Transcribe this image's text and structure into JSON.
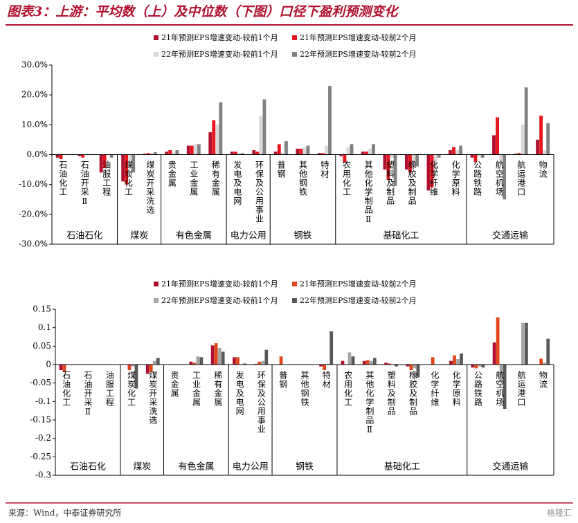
{
  "header": {
    "title": "图表3：上游：平均数（上）及中位数（下图）口径下盈利预测变化"
  },
  "chart_data": [
    {
      "type": "bar",
      "groups": [
        {
          "name": "石油石化",
          "categories": [
            "石油化工",
            "石油开采Ⅱ",
            "油服工程"
          ]
        },
        {
          "name": "煤炭",
          "categories": [
            "煤炭化工",
            "煤炭开采洗选"
          ]
        },
        {
          "name": "有色金属",
          "categories": [
            "贵金属",
            "工业金属",
            "稀有金属"
          ]
        },
        {
          "name": "电力公用",
          "categories": [
            "发电及电网",
            "环保及公用事业"
          ]
        },
        {
          "name": "钢铁",
          "categories": [
            "普钢",
            "其他钢铁",
            "特材"
          ]
        },
        {
          "name": "基础化工",
          "categories": [
            "农用化工",
            "其他化学制品Ⅱ",
            "塑料及制品",
            "橡胶及制品",
            "化学纤维",
            "化学原料"
          ]
        },
        {
          "name": "交通运输",
          "categories": [
            "公路铁路",
            "航空机场",
            "航运港口",
            "物流"
          ]
        }
      ],
      "series": [
        {
          "name": "21年预测EPS增速变动-较前1个月",
          "color": "#b0102e",
          "values": [
            -1,
            -0.5,
            -6,
            -9,
            0.3,
            1,
            3,
            7.5,
            1,
            1.5,
            1,
            2,
            0.5,
            -0.5,
            1,
            -5,
            -5,
            -12,
            1.5,
            -1,
            6.5,
            0.3,
            5
          ]
        },
        {
          "name": "21年预测EPS增速变动-较前2个月",
          "color": "#e8141c",
          "values": [
            -1.5,
            -1,
            -4.5,
            -10,
            0.5,
            1.5,
            3,
            11.5,
            1,
            1,
            3.5,
            2,
            0.5,
            -2.5,
            1,
            -8.5,
            -6,
            -11,
            2.5,
            -2.5,
            12.5,
            0.5,
            13
          ]
        },
        {
          "name": "22年预测EPS增速变动-较前1个月",
          "color": "#d9d9d9",
          "values": [
            0,
            0,
            0,
            -4,
            0.5,
            1,
            3.5,
            10,
            0.5,
            13,
            0.5,
            2.5,
            3,
            2.5,
            2,
            -1,
            -2.5,
            -5,
            1.5,
            -0.5,
            -3,
            10,
            1.5
          ]
        },
        {
          "name": "22年预测EPS增速变动-较前2个月",
          "color": "#808080",
          "values": [
            0,
            0,
            -1,
            -6,
            0.8,
            1.5,
            3.5,
            17.5,
            0.5,
            18.5,
            4.5,
            3,
            23,
            3.5,
            3.5,
            -10.5,
            -4,
            -1,
            3,
            -1,
            -15,
            22.5,
            10.5
          ]
        }
      ],
      "ylim": [
        -30,
        30
      ],
      "yticks": [
        {
          "value": -30,
          "label": "-30.0%"
        },
        {
          "value": -20,
          "label": "-20.0%"
        },
        {
          "value": -10,
          "label": "-10.0%"
        },
        {
          "value": 0,
          "label": "0.0%"
        },
        {
          "value": 10,
          "label": "10.0%"
        },
        {
          "value": 20,
          "label": "20.0%"
        },
        {
          "value": 30,
          "label": "30.0%"
        }
      ]
    },
    {
      "type": "bar",
      "groups": [
        {
          "name": "石油石化",
          "categories": [
            "石油化工",
            "石油开采Ⅱ",
            "油服工程"
          ]
        },
        {
          "name": "煤炭",
          "categories": [
            "煤炭化工",
            "煤炭开采洗选"
          ]
        },
        {
          "name": "有色金属",
          "categories": [
            "贵金属",
            "工业金属",
            "稀有金属"
          ]
        },
        {
          "name": "电力公用",
          "categories": [
            "发电及电网",
            "环保及公用事业"
          ]
        },
        {
          "name": "钢铁",
          "categories": [
            "普钢",
            "其他钢铁",
            "特材"
          ]
        },
        {
          "name": "基础化工",
          "categories": [
            "农用化工",
            "其他化学制品Ⅱ",
            "塑料及制品",
            "橡胶及制品",
            "化学纤维",
            "化学原料"
          ]
        },
        {
          "name": "交通运输",
          "categories": [
            "公路铁路",
            "航空机场",
            "航运港口",
            "物流"
          ]
        }
      ],
      "series": [
        {
          "name": "21年预测EPS增速变动-较前1个月",
          "color": "#b0102e",
          "values": [
            -0.015,
            0,
            0,
            0,
            -0.025,
            0,
            0.008,
            0.052,
            0.02,
            0.002,
            0,
            0,
            -0.005,
            0.01,
            0.01,
            0.005,
            -0.005,
            0,
            0.01,
            -0.008,
            0.06,
            0,
            0
          ]
        },
        {
          "name": "21年预测EPS增速变动-较前2个月",
          "color": "#e0461a",
          "values": [
            -0.02,
            0,
            0,
            -0.015,
            -0.02,
            0,
            0.005,
            0.058,
            0.02,
            0.008,
            0.022,
            0,
            -0.015,
            0,
            0.012,
            0.003,
            -0.015,
            0.02,
            0.025,
            -0.01,
            0.128,
            0,
            0.016
          ]
        },
        {
          "name": "22年预测EPS增速变动-较前1个月",
          "color": "#a6a6a6",
          "values": [
            0,
            0,
            0,
            -0.005,
            0.01,
            0,
            0.022,
            0.045,
            0,
            0.01,
            0,
            0,
            0.002,
            0.033,
            0.01,
            0,
            -0.01,
            0,
            0.015,
            -0.005,
            -0.045,
            0.113,
            0.005
          ]
        },
        {
          "name": "22年预测EPS增速变动-较前2个月",
          "color": "#595959",
          "values": [
            0,
            0,
            0,
            -0.065,
            0.018,
            0,
            0.02,
            0.035,
            0.003,
            0.04,
            0,
            0,
            0.09,
            0.022,
            0.018,
            -0.005,
            -0.035,
            0,
            0.03,
            -0.008,
            -0.12,
            0.113,
            0.07
          ]
        }
      ],
      "ylim": [
        -0.3,
        0.15
      ],
      "yticks": [
        -0.3,
        -0.25,
        -0.2,
        -0.15,
        -0.1,
        -0.05,
        0,
        0.05,
        0.1,
        0.15
      ]
    }
  ],
  "footer": {
    "source": "来源：Wind，中泰证券研究所",
    "watermark": "格隆汇"
  }
}
